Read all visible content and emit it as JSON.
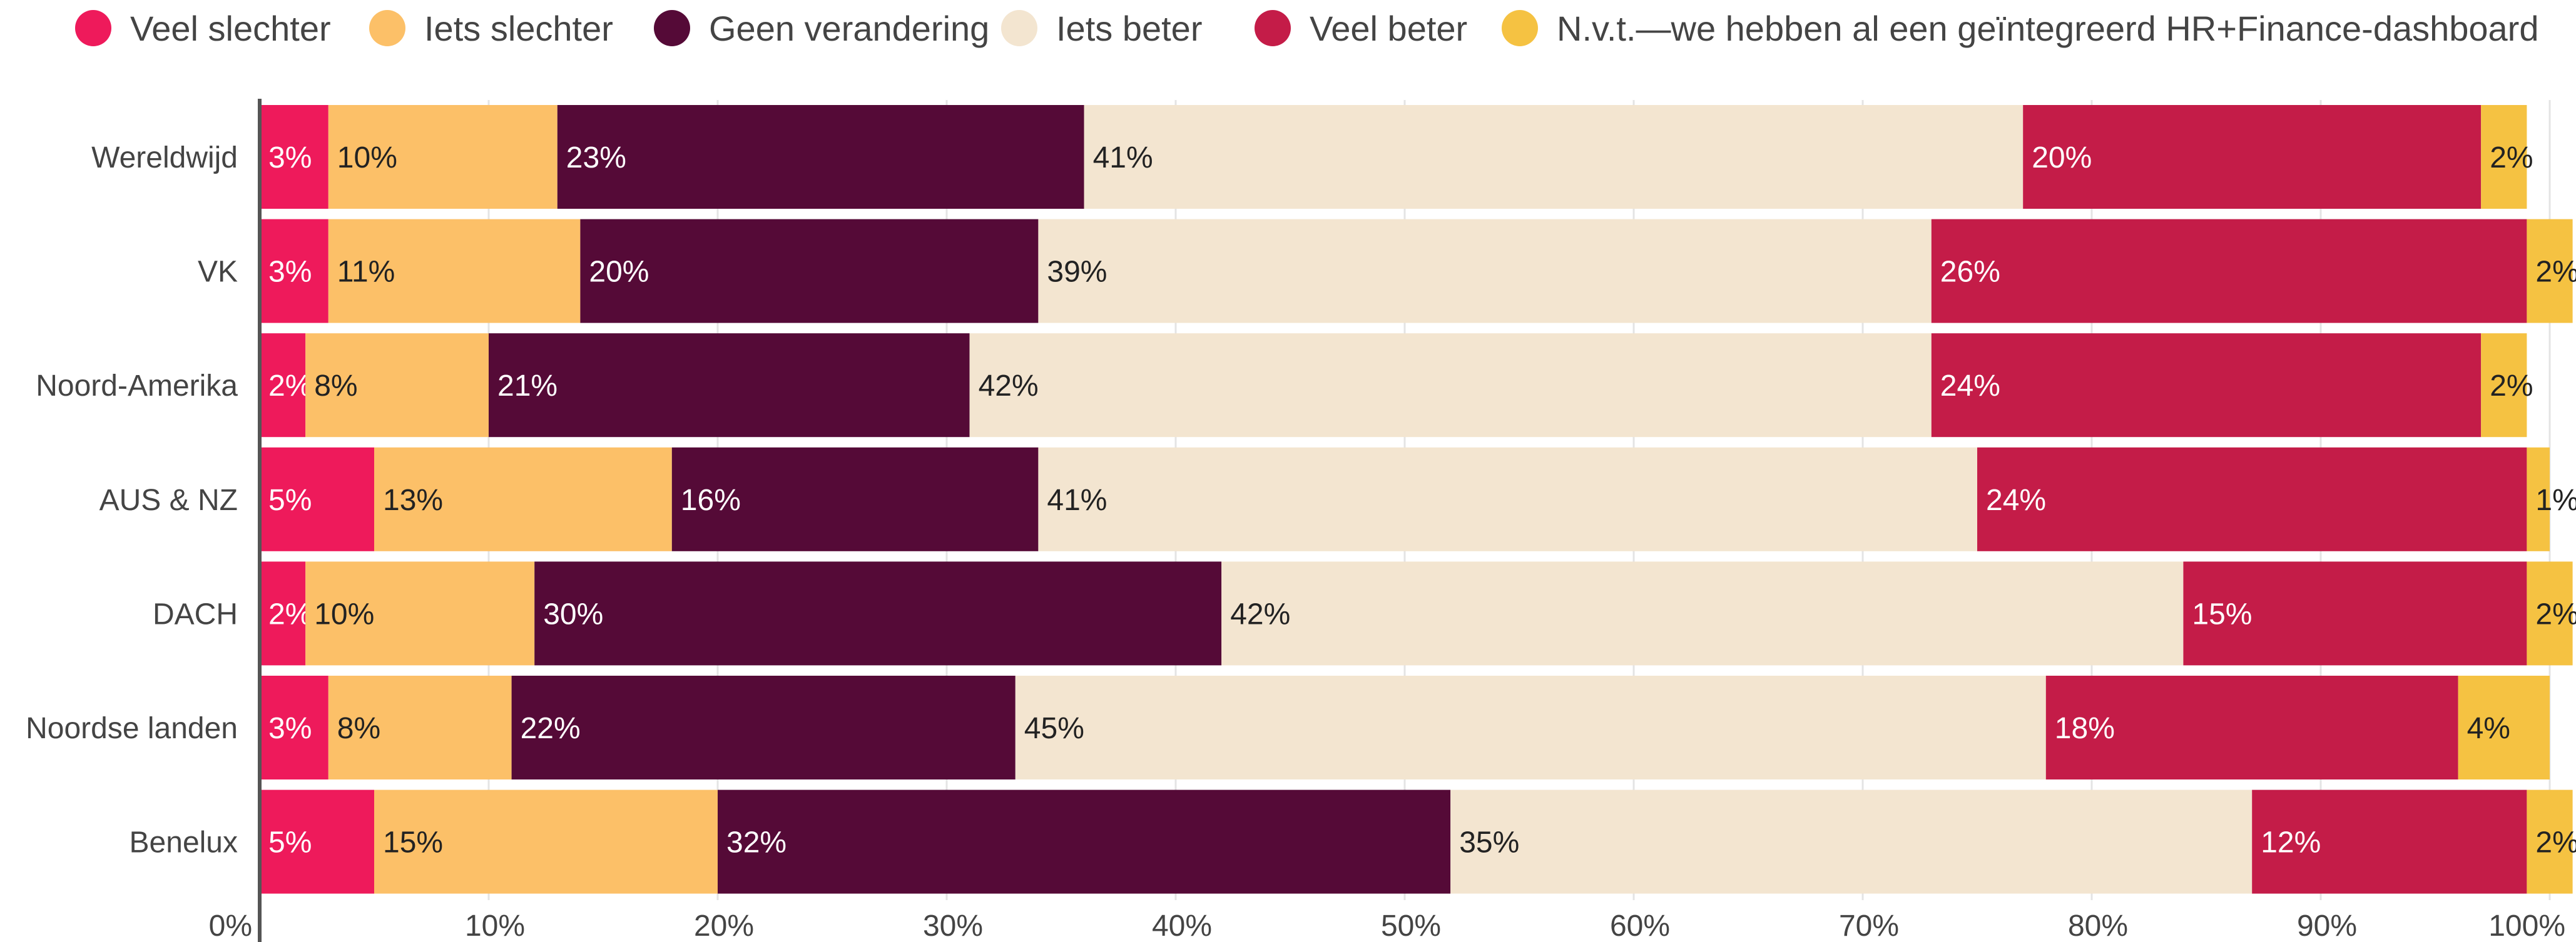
{
  "chart_data": {
    "type": "bar",
    "orientation": "horizontal",
    "stacked": true,
    "categories": [
      "Wereldwijd",
      "VK",
      "Noord-Amerika",
      "AUS & NZ",
      "DACH",
      "Noordse landen",
      "Benelux"
    ],
    "series": [
      {
        "name": "Veel slechter",
        "color": "#ee1a5b",
        "values": [
          3,
          3,
          2,
          5,
          2,
          3,
          5
        ],
        "labels": [
          "3%",
          "3%",
          "2%",
          "5%",
          "2%",
          "3%",
          "5%"
        ]
      },
      {
        "name": "Iets slechter",
        "color": "#fcc068",
        "values": [
          10,
          11,
          8,
          13,
          10,
          8,
          15
        ],
        "labels": [
          "10%",
          "11%",
          "8%",
          "13%",
          "10%",
          "8%",
          "15%"
        ]
      },
      {
        "name": "Geen verandering",
        "color": "#550a37",
        "values": [
          23,
          20,
          21,
          16,
          30,
          22,
          32
        ],
        "labels": [
          "23%",
          "20%",
          "21%",
          "16%",
          "30%",
          "22%",
          "32%"
        ]
      },
      {
        "name": "Iets beter",
        "color": "#f3e5d0",
        "values": [
          41,
          39,
          42,
          41,
          42,
          45,
          35
        ],
        "labels": [
          "41%",
          "39%",
          "42%",
          "41%",
          "42%",
          "45%",
          "35%"
        ]
      },
      {
        "name": "Veel beter",
        "color": "#c41c48",
        "values": [
          20,
          26,
          24,
          24,
          15,
          18,
          12
        ],
        "labels": [
          "20%",
          "26%",
          "24%",
          "24%",
          "15%",
          "18%",
          "12%"
        ]
      },
      {
        "name": "N.v.t.—we hebben al een geïntegreerd HR+Finance-dashboard",
        "color": "#f5c242",
        "values": [
          2,
          2,
          2,
          1,
          2,
          4,
          2
        ],
        "labels": [
          "2%",
          "2%",
          "2%",
          "1%",
          "2%",
          "4%",
          "2%"
        ]
      }
    ],
    "xlim": [
      0,
      100
    ],
    "xticks": [
      "0%",
      "10%",
      "20%",
      "30%",
      "40%",
      "50%",
      "60%",
      "70%",
      "80%",
      "90%",
      "100%"
    ],
    "grid": true,
    "legend_position": "top"
  }
}
